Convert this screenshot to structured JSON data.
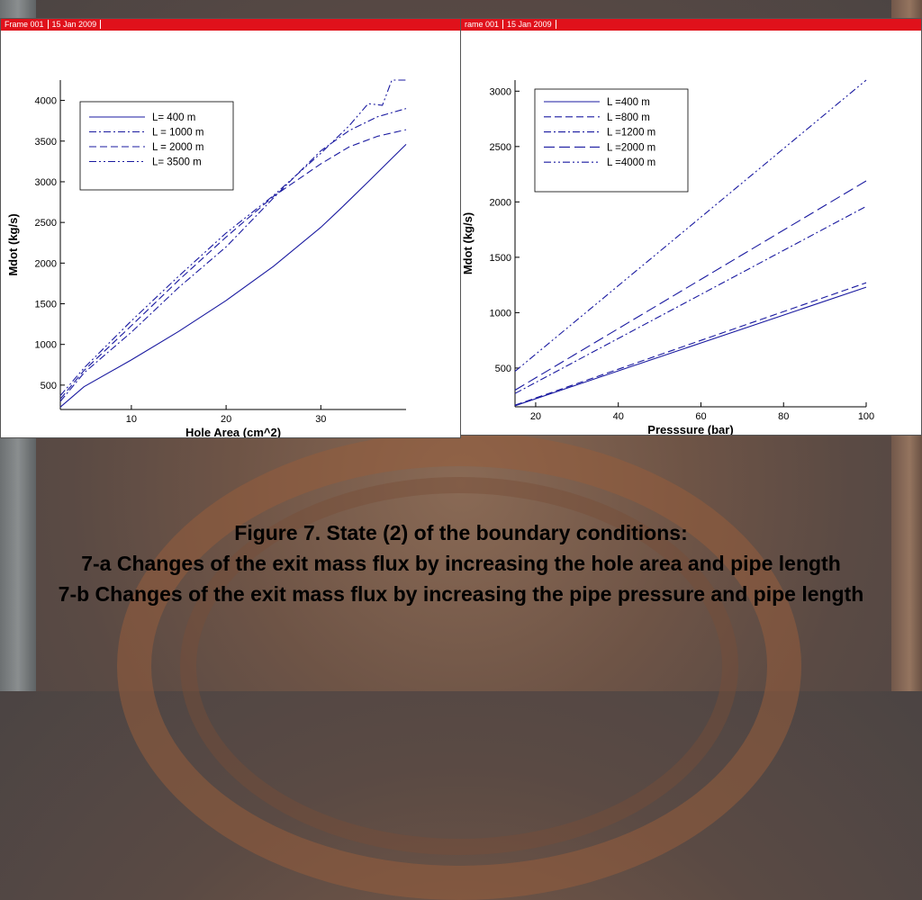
{
  "slide": {
    "caption_lines": [
      "Figure 7. State (2) of the boundary conditions:",
      "7-a Changes of the exit mass flux by increasing the hole area and pipe length",
      "7-b Changes of the exit mass flux by increasing the pipe pressure and pipe length"
    ]
  },
  "panel_a": {
    "frame_label": "Frame 001",
    "date_label": "15 Jan 2009"
  },
  "panel_b": {
    "frame_label": "rame 001",
    "date_label": "15 Jan 2009"
  },
  "colors": {
    "header_bar": "#e0111b",
    "series_line": "#1a1aa0"
  },
  "chart_data": [
    {
      "type": "line",
      "xlabel": "Hole Area (cm^2)",
      "ylabel": "Mdot (kg/s)",
      "xlim": [
        2.5,
        39
      ],
      "ylim": [
        200,
        4250
      ],
      "xticks": [
        10,
        20,
        30
      ],
      "yticks": [
        500,
        1000,
        1500,
        2000,
        2500,
        3000,
        3500,
        4000
      ],
      "legend_position": "top-left",
      "series": [
        {
          "name": "L= 400 m",
          "dash": "solid",
          "points": [
            [
              2.5,
              230
            ],
            [
              5,
              480
            ],
            [
              10,
              810
            ],
            [
              15,
              1160
            ],
            [
              20,
              1540
            ],
            [
              25,
              1960
            ],
            [
              30,
              2440
            ],
            [
              32,
              2660
            ],
            [
              35,
              3000
            ],
            [
              39,
              3460
            ]
          ]
        },
        {
          "name": "L = 1000 m",
          "dash": "dashdot",
          "points": [
            [
              2.5,
              300
            ],
            [
              5,
              650
            ],
            [
              10,
              1150
            ],
            [
              15,
              1700
            ],
            [
              20,
              2200
            ],
            [
              25,
              2800
            ],
            [
              28,
              3150
            ],
            [
              30,
              3380
            ],
            [
              33,
              3630
            ],
            [
              36,
              3800
            ],
            [
              39,
              3900
            ]
          ]
        },
        {
          "name": "L = 2000 m",
          "dash": "dashed",
          "points": [
            [
              2.5,
              330
            ],
            [
              5,
              680
            ],
            [
              10,
              1230
            ],
            [
              15,
              1790
            ],
            [
              20,
              2320
            ],
            [
              25,
              2820
            ],
            [
              30,
              3220
            ],
            [
              33,
              3430
            ],
            [
              36,
              3560
            ],
            [
              39,
              3640
            ]
          ]
        },
        {
          "name": "L= 3500 m",
          "dash": "dashdotdot",
          "points": [
            [
              2.5,
              370
            ],
            [
              5,
              710
            ],
            [
              10,
              1290
            ],
            [
              15,
              1840
            ],
            [
              20,
              2370
            ],
            [
              25,
              2830
            ],
            [
              30,
              3350
            ],
            [
              33,
              3690
            ],
            [
              35,
              3960
            ],
            [
              36.5,
              3940
            ],
            [
              37.5,
              4250
            ],
            [
              39,
              4250
            ]
          ]
        }
      ]
    },
    {
      "type": "line",
      "xlabel": "Presssure (bar)",
      "ylabel": "Mdot (kg/s)",
      "xlim": [
        15,
        100
      ],
      "ylim": [
        150,
        3100
      ],
      "xticks": [
        20,
        40,
        60,
        80,
        100
      ],
      "yticks": [
        500,
        1000,
        1500,
        2000,
        2500,
        3000
      ],
      "legend_position": "top-left",
      "series": [
        {
          "name": "L =400 m",
          "dash": "solid",
          "points": [
            [
              15,
              160
            ],
            [
              100,
              1230
            ]
          ]
        },
        {
          "name": "L =800 m",
          "dash": "dashed",
          "points": [
            [
              15,
              165
            ],
            [
              100,
              1270
            ]
          ]
        },
        {
          "name": "L =1200 m",
          "dash": "dashdot",
          "points": [
            [
              15,
              270
            ],
            [
              100,
              1960
            ]
          ]
        },
        {
          "name": "L =2000 m",
          "dash": "longdash",
          "points": [
            [
              15,
              300
            ],
            [
              100,
              2190
            ]
          ]
        },
        {
          "name": "L =4000 m",
          "dash": "dashdotdot",
          "points": [
            [
              15,
              470
            ],
            [
              100,
              3100
            ]
          ]
        }
      ]
    }
  ]
}
